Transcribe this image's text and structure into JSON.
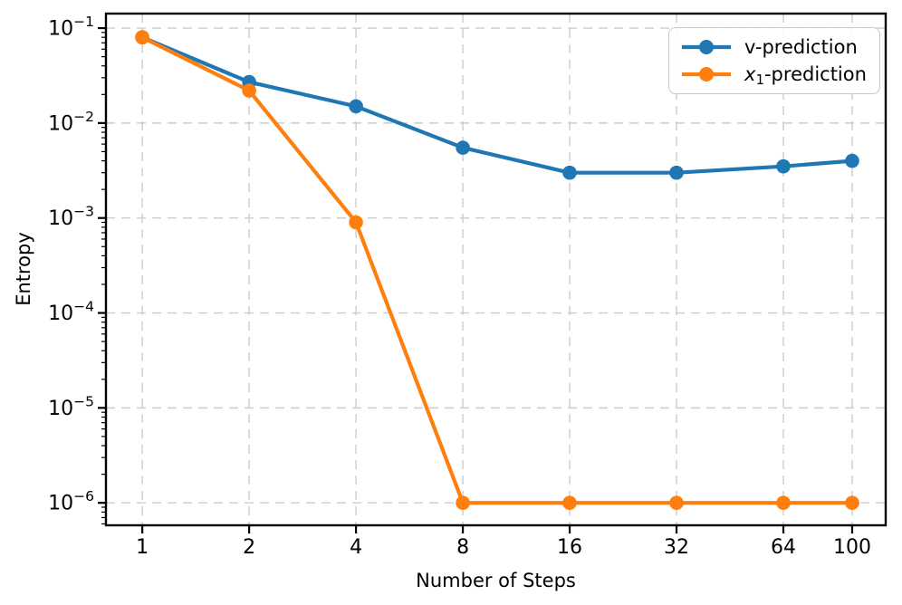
{
  "figure": {
    "background": "#ffffff",
    "axis_color": "#000000"
  },
  "chart_data": {
    "type": "line",
    "title": "",
    "xlabel": "Number of Steps",
    "ylabel": "Entropy",
    "xscale": "log2",
    "yscale": "log10",
    "xlim": [
      0.79,
      124.3
    ],
    "ylim": [
      5.8e-07,
      0.1422
    ],
    "xticks": [
      1,
      2,
      4,
      8,
      16,
      32,
      64,
      100
    ],
    "xtick_labels": [
      "1",
      "2",
      "4",
      "8",
      "16",
      "32",
      "64",
      "100"
    ],
    "ytick_exponents": [
      -1,
      -2,
      -3,
      -4,
      -5,
      -6
    ],
    "ytick_base": "10",
    "grid": {
      "which": "major",
      "style": "dashed",
      "color": "#cccccc"
    },
    "legend": {
      "position": "upper right",
      "border_color": "#c9c9c9"
    },
    "x": [
      1,
      2,
      4,
      8,
      16,
      32,
      64,
      100
    ],
    "series": [
      {
        "name": "v-prediction",
        "key": "v-prediction",
        "color": "#1f77b4",
        "values": [
          0.08,
          0.027,
          0.015,
          0.0055,
          0.003,
          0.003,
          0.0035,
          0.004
        ]
      },
      {
        "name": "x₁-prediction",
        "key": "x1-prediction",
        "color": "#ff7f0e",
        "values": [
          0.08,
          0.022,
          0.0009,
          1e-06,
          1e-06,
          1e-06,
          1e-06,
          1e-06
        ]
      }
    ]
  }
}
